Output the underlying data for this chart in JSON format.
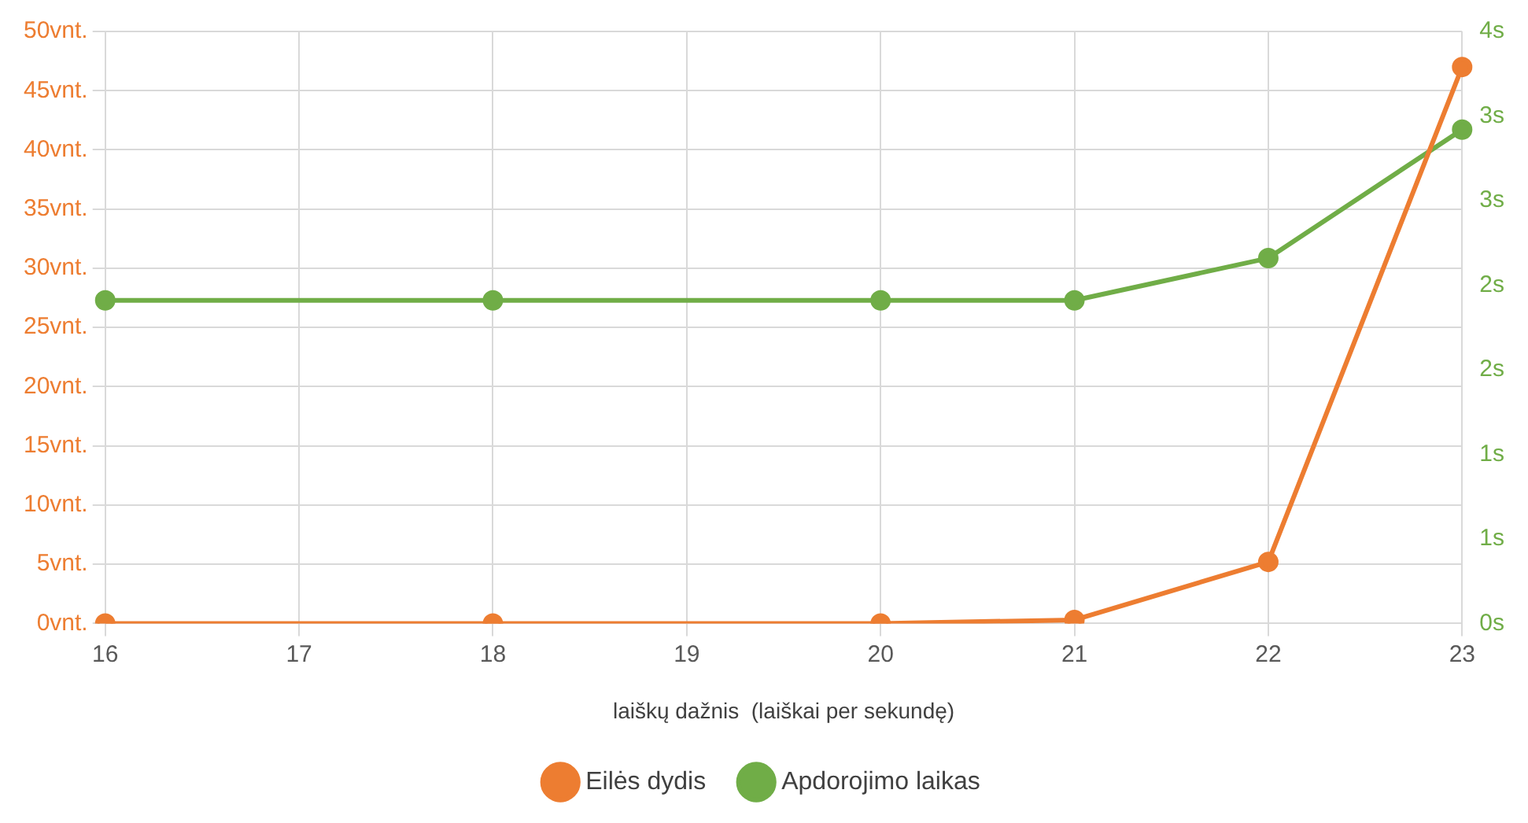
{
  "chart_data": {
    "type": "line",
    "xlabel": "laiškų dažnis  (laiškai per sekundę)",
    "categories": [
      "16",
      "17",
      "18",
      "19",
      "20",
      "21",
      "22",
      "23"
    ],
    "series": [
      {
        "name": "Eilės dydis",
        "color": "#ed7d31",
        "values": [
          0,
          null,
          0,
          null,
          0,
          0.3,
          5.2,
          47
        ]
      },
      {
        "name": "Apdorojimo laikas",
        "color": "#70ad47",
        "axis": "y2",
        "values": [
          1.91,
          null,
          1.91,
          null,
          1.91,
          1.91,
          2.16,
          2.92
        ]
      }
    ],
    "ylim": [
      0,
      50
    ],
    "yticks": [
      {
        "value": 0,
        "label": "0vnt."
      },
      {
        "value": 5,
        "label": "5vnt."
      },
      {
        "value": 10,
        "label": "10vnt."
      },
      {
        "value": 15,
        "label": "15vnt."
      },
      {
        "value": 20,
        "label": "20vnt."
      },
      {
        "value": 25,
        "label": "25vnt."
      },
      {
        "value": 30,
        "label": "30vnt."
      },
      {
        "value": 35,
        "label": "35vnt."
      },
      {
        "value": 40,
        "label": "40vnt."
      },
      {
        "value": 45,
        "label": "45vnt."
      },
      {
        "value": 50,
        "label": "50vnt."
      }
    ],
    "y2lim": [
      0,
      3.5
    ],
    "y2ticks": [
      {
        "value": 0,
        "label": "0s"
      },
      {
        "value": 0.5,
        "label": "1s"
      },
      {
        "value": 1,
        "label": "1s"
      },
      {
        "value": 1.5,
        "label": "2s"
      },
      {
        "value": 2,
        "label": "2s"
      },
      {
        "value": 2.5,
        "label": "3s"
      },
      {
        "value": 3,
        "label": "3s"
      },
      {
        "value": 3.5,
        "label": "4s"
      }
    ],
    "grid": true,
    "legend": "bottom",
    "marker": "circle",
    "line_style": "solid"
  }
}
